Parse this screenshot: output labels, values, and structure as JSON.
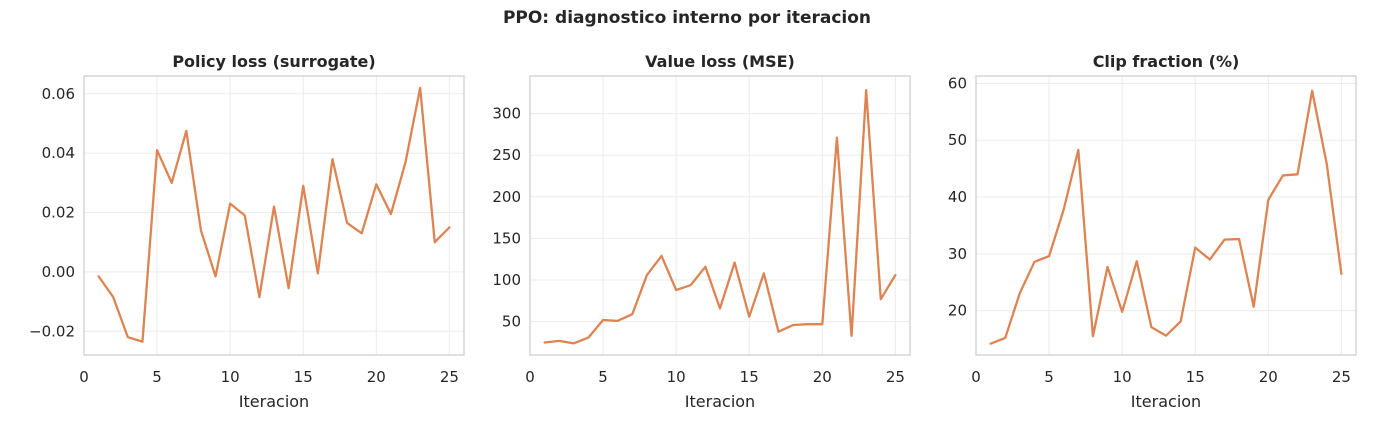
{
  "figure": {
    "title": "PPO: diagnostico interno por iteracion",
    "line_color": "#dd8452"
  },
  "chart_data": [
    {
      "type": "line",
      "title": "Policy loss (surrogate)",
      "xlabel": "Iteracion",
      "ylabel": "",
      "xlim": [
        0,
        26
      ],
      "ylim": [
        -0.028,
        0.066
      ],
      "xticks": [
        0,
        5,
        10,
        15,
        20,
        25
      ],
      "xtick_labels": [
        "0",
        "5",
        "10",
        "15",
        "20",
        "25"
      ],
      "yticks": [
        -0.02,
        0.0,
        0.02,
        0.04,
        0.06
      ],
      "ytick_labels": [
        "−0.02",
        "0.00",
        "0.02",
        "0.04",
        "0.06"
      ],
      "grid": true,
      "x": [
        1,
        2,
        3,
        4,
        5,
        6,
        7,
        8,
        9,
        10,
        11,
        12,
        13,
        14,
        15,
        16,
        17,
        18,
        19,
        20,
        21,
        22,
        23,
        24,
        25
      ],
      "y": [
        -0.0015,
        -0.0085,
        -0.022,
        -0.0235,
        0.041,
        0.03,
        0.0475,
        0.014,
        -0.0015,
        0.023,
        0.019,
        -0.0085,
        0.022,
        -0.0055,
        0.029,
        -0.0005,
        0.038,
        0.0165,
        0.013,
        0.0295,
        0.0195,
        0.037,
        0.062,
        0.01,
        0.015
      ]
    },
    {
      "type": "line",
      "title": "Value loss (MSE)",
      "xlabel": "Iteracion",
      "ylabel": "",
      "xlim": [
        0,
        26
      ],
      "ylim": [
        10,
        345
      ],
      "xticks": [
        0,
        5,
        10,
        15,
        20,
        25
      ],
      "xtick_labels": [
        "0",
        "5",
        "10",
        "15",
        "20",
        "25"
      ],
      "yticks": [
        50,
        100,
        150,
        200,
        250,
        300
      ],
      "ytick_labels": [
        "50",
        "100",
        "150",
        "200",
        "250",
        "300"
      ],
      "grid": true,
      "x": [
        1,
        2,
        3,
        4,
        5,
        6,
        7,
        8,
        9,
        10,
        11,
        12,
        13,
        14,
        15,
        16,
        17,
        18,
        19,
        20,
        21,
        22,
        23,
        24,
        25
      ],
      "y": [
        25,
        27,
        24,
        31,
        52,
        51,
        59,
        106,
        129,
        88,
        94,
        116,
        66,
        121,
        56,
        108,
        38,
        46,
        47,
        47,
        271,
        33,
        328,
        77,
        106
      ]
    },
    {
      "type": "line",
      "title": "Clip fraction (%)",
      "xlabel": "Iteracion",
      "ylabel": "",
      "xlim": [
        0,
        26
      ],
      "ylim": [
        12.2,
        61.3
      ],
      "xticks": [
        0,
        5,
        10,
        15,
        20,
        25
      ],
      "xtick_labels": [
        "0",
        "5",
        "10",
        "15",
        "20",
        "25"
      ],
      "yticks": [
        20,
        30,
        40,
        50,
        60
      ],
      "ytick_labels": [
        "20",
        "30",
        "40",
        "50",
        "60"
      ],
      "grid": true,
      "x": [
        1,
        2,
        3,
        4,
        5,
        6,
        7,
        8,
        9,
        10,
        11,
        12,
        13,
        14,
        15,
        16,
        17,
        18,
        19,
        20,
        21,
        22,
        23,
        24,
        25
      ],
      "y": [
        14.2,
        15.2,
        23.1,
        28.6,
        29.6,
        37.8,
        48.3,
        15.5,
        27.7,
        19.8,
        28.7,
        17.1,
        15.6,
        18.1,
        31.1,
        29.0,
        32.5,
        32.6,
        20.7,
        39.5,
        43.8,
        44.0,
        58.7,
        45.8,
        26.5
      ]
    }
  ]
}
